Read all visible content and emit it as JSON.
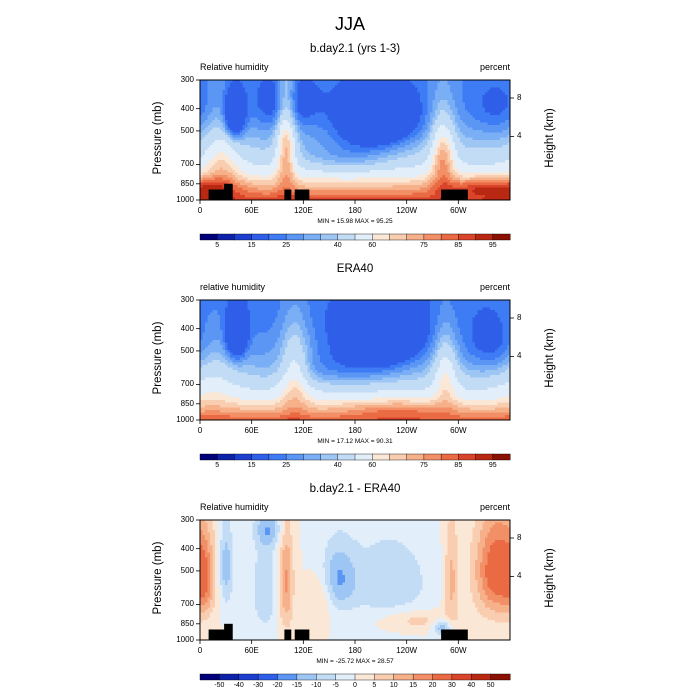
{
  "figure": {
    "title": "JJA"
  },
  "panels": [
    {
      "title": "b.day2.1 (yrs 1-3)",
      "left_label": "Relative humidity",
      "right_label": "percent",
      "ylabel": "Pressure (mb)",
      "y2label": "Height (km)",
      "min_max": "MIN = 15.98  MAX = 95.25",
      "colorbar_labels": [
        "5",
        "15",
        "25",
        "40",
        "60",
        "75",
        "85",
        "95"
      ]
    },
    {
      "title": "ERA40",
      "left_label": "relative humidity",
      "right_label": "percent",
      "ylabel": "Pressure (mb)",
      "y2label": "Height (km)",
      "min_max": "MIN = 17.12  MAX = 90.31",
      "colorbar_labels": [
        "5",
        "15",
        "25",
        "40",
        "60",
        "75",
        "85",
        "95"
      ]
    },
    {
      "title": "b.day2.1 - ERA40",
      "left_label": "Relative humidity",
      "right_label": "percent",
      "ylabel": "Pressure (mb)",
      "y2label": "Height (km)",
      "min_max": "MIN = -25.72  MAX = 28.57",
      "colorbar_labels": [
        "-50",
        "-40",
        "-30",
        "-20",
        "-15",
        "-10",
        "-5",
        "0",
        "5",
        "10",
        "15",
        "20",
        "30",
        "40",
        "50"
      ]
    }
  ],
  "chart_data": [
    {
      "type": "heatmap",
      "title": "b.day2.1 (yrs 1-3)",
      "xlabel": "",
      "ylabel": "Pressure (mb)",
      "y2label": "Height (km)",
      "x_ticks": [
        "0",
        "60E",
        "120E",
        "180",
        "120W",
        "60W"
      ],
      "x_tick_values": [
        0,
        60,
        120,
        180,
        240,
        300
      ],
      "xlim": [
        0,
        360
      ],
      "y_ticks": [
        "300",
        "400",
        "500",
        "700",
        "850",
        "1000"
      ],
      "y_tick_values": [
        300,
        400,
        500,
        700,
        850,
        1000
      ],
      "ylim": [
        1000,
        300
      ],
      "y_scale": "log",
      "y2_ticks": [
        "8",
        "4"
      ],
      "y2_tick_values": [
        8,
        4
      ],
      "min": 15.98,
      "max": 95.25,
      "levels": [
        5,
        10,
        15,
        20,
        25,
        30,
        35,
        40,
        50,
        60,
        65,
        70,
        75,
        80,
        85,
        90,
        95
      ],
      "colorbar_labels": [
        "5",
        "15",
        "25",
        "40",
        "60",
        "75",
        "85",
        "95"
      ],
      "colors": [
        "#00007a",
        "#0c22a8",
        "#1d3fd0",
        "#2f5ee8",
        "#3e7cf5",
        "#5b96f5",
        "#7aaef5",
        "#9ec6f5",
        "#c2dcf5",
        "#e2effa",
        "#fbe7d6",
        "#f9cdb0",
        "#f6b08a",
        "#f28f66",
        "#ea6a44",
        "#d9442a",
        "#b92812",
        "#8a1002"
      ],
      "terrain_mask": "black"
    },
    {
      "type": "heatmap",
      "title": "ERA40",
      "xlabel": "",
      "ylabel": "Pressure (mb)",
      "y2label": "Height (km)",
      "x_ticks": [
        "0",
        "60E",
        "120E",
        "180",
        "120W",
        "60W"
      ],
      "x_tick_values": [
        0,
        60,
        120,
        180,
        240,
        300
      ],
      "xlim": [
        0,
        360
      ],
      "y_ticks": [
        "300",
        "400",
        "500",
        "700",
        "850",
        "1000"
      ],
      "y_tick_values": [
        300,
        400,
        500,
        700,
        850,
        1000
      ],
      "ylim": [
        1000,
        300
      ],
      "y_scale": "log",
      "y2_ticks": [
        "8",
        "4"
      ],
      "y2_tick_values": [
        8,
        4
      ],
      "min": 17.12,
      "max": 90.31,
      "levels": [
        5,
        10,
        15,
        20,
        25,
        30,
        35,
        40,
        50,
        60,
        65,
        70,
        75,
        80,
        85,
        90,
        95
      ],
      "colorbar_labels": [
        "5",
        "15",
        "25",
        "40",
        "60",
        "75",
        "85",
        "95"
      ],
      "colors": [
        "#00007a",
        "#0c22a8",
        "#1d3fd0",
        "#2f5ee8",
        "#3e7cf5",
        "#5b96f5",
        "#7aaef5",
        "#9ec6f5",
        "#c2dcf5",
        "#e2effa",
        "#fbe7d6",
        "#f9cdb0",
        "#f6b08a",
        "#f28f66",
        "#ea6a44",
        "#d9442a",
        "#b92812",
        "#8a1002"
      ]
    },
    {
      "type": "heatmap",
      "title": "b.day2.1 - ERA40",
      "xlabel": "",
      "ylabel": "Pressure (mb)",
      "y2label": "Height (km)",
      "x_ticks": [
        "0",
        "60E",
        "120E",
        "180",
        "120W",
        "60W"
      ],
      "x_tick_values": [
        0,
        60,
        120,
        180,
        240,
        300
      ],
      "xlim": [
        0,
        360
      ],
      "y_ticks": [
        "300",
        "400",
        "500",
        "700",
        "850",
        "1000"
      ],
      "y_tick_values": [
        300,
        400,
        500,
        700,
        850,
        1000
      ],
      "ylim": [
        1000,
        300
      ],
      "y_scale": "log",
      "y2_ticks": [
        "8",
        "4"
      ],
      "y2_tick_values": [
        8,
        4
      ],
      "min": -25.72,
      "max": 28.57,
      "levels": [
        -50,
        -40,
        -30,
        -20,
        -15,
        -10,
        -5,
        0,
        5,
        10,
        15,
        20,
        30,
        40,
        50
      ],
      "colorbar_labels": [
        "-50",
        "-40",
        "-30",
        "-20",
        "-15",
        "-10",
        "-5",
        "0",
        "5",
        "10",
        "15",
        "20",
        "30",
        "40",
        "50"
      ],
      "colors": [
        "#00007a",
        "#0c22a8",
        "#1d3fd0",
        "#2f5ee8",
        "#5b96f5",
        "#9ec6f5",
        "#c2dcf5",
        "#e2effa",
        "#fbe7d6",
        "#f9cdb0",
        "#f6b08a",
        "#f28f66",
        "#ea6a44",
        "#d9442a",
        "#b92812",
        "#8a1002"
      ],
      "terrain_mask": "black"
    }
  ]
}
